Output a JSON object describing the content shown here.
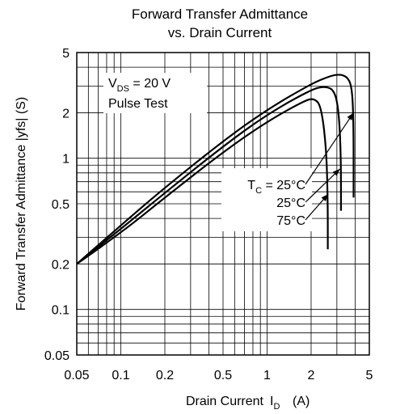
{
  "chart_data": {
    "type": "line",
    "title": "Forward Transfer Admittance",
    "subtitle": "vs. Drain Current",
    "xlabel": "Drain Current",
    "xlabel_symbol": "I",
    "xlabel_subscript": "D",
    "xlabel_unit": "(A)",
    "ylabel": "Forward Transfer Admittance  |yfs|  (S)",
    "x_scale": "log",
    "y_scale": "log",
    "xlim": [
      0.05,
      5
    ],
    "ylim": [
      0.05,
      5
    ],
    "x_ticks": [
      0.05,
      0.1,
      0.2,
      0.5,
      1,
      2,
      5
    ],
    "x_tick_labels": [
      "0.05",
      "0.1",
      "0.2",
      "0.5",
      "1",
      "2",
      "5"
    ],
    "y_ticks": [
      0.05,
      0.1,
      0.2,
      0.5,
      1,
      2,
      5
    ],
    "y_tick_labels": [
      "0.05",
      "0.1",
      "0.2",
      "0.5",
      "1",
      "2",
      "5"
    ],
    "grid": true,
    "conditions": {
      "vds_symbol": "V",
      "vds_subscript": "DS",
      "vds_value": " = 20 V",
      "pulse": "Pulse Test"
    },
    "legend_prefix_symbol": "T",
    "legend_prefix_subscript": "C",
    "legend_prefix_eq": " = ",
    "series": [
      {
        "name": "25°C",
        "color": "#000000",
        "x": [
          0.05,
          0.1,
          0.2,
          0.5,
          1,
          2,
          2.5,
          3,
          3.5,
          3.8,
          3.9,
          3.9
        ],
        "y": [
          0.2,
          0.36,
          0.64,
          1.3,
          2.1,
          3.1,
          3.4,
          3.6,
          3.5,
          3.0,
          1.8,
          0.55
        ]
      },
      {
        "name": "25°C",
        "color": "#000000",
        "x": [
          0.05,
          0.1,
          0.2,
          0.5,
          1,
          2,
          2.5,
          2.9,
          3.1,
          3.2,
          3.2
        ],
        "y": [
          0.2,
          0.34,
          0.59,
          1.2,
          1.95,
          2.85,
          3.0,
          2.8,
          2.0,
          1.0,
          0.45
        ]
      },
      {
        "name": "75°C",
        "color": "#000000",
        "x": [
          0.05,
          0.1,
          0.2,
          0.5,
          1,
          1.8,
          2.1,
          2.35,
          2.55,
          2.6,
          2.6
        ],
        "y": [
          0.2,
          0.32,
          0.55,
          1.1,
          1.75,
          2.4,
          2.5,
          2.2,
          1.1,
          0.5,
          0.25
        ]
      }
    ]
  }
}
